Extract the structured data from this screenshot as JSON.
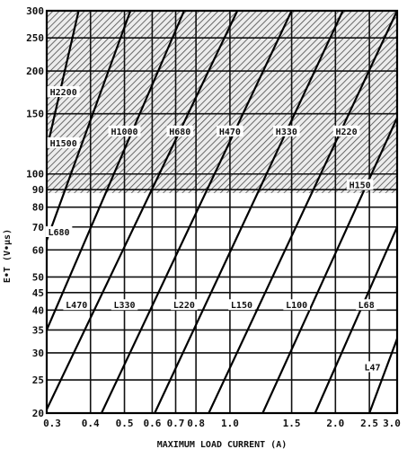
{
  "chart_data": {
    "type": "line",
    "title": "",
    "xlabel": "MAXIMUM LOAD CURRENT (A)",
    "ylabel": "E•T (V•μs)",
    "x_scale": "log",
    "y_scale": "log",
    "xlim": [
      0.3,
      3.0
    ],
    "ylim": [
      20,
      300
    ],
    "grid": true,
    "x_ticks": [
      0.3,
      0.4,
      0.5,
      0.6,
      0.7,
      0.8,
      1.0,
      1.5,
      2.0,
      2.5,
      3.0
    ],
    "x_tick_labels": [
      "0.3",
      "0.4",
      "0.5",
      "0.6",
      "0.7",
      "0.8",
      "1.0",
      "1.5",
      "2.0",
      "2.5",
      "3.0"
    ],
    "y_ticks": [
      20,
      25,
      30,
      35,
      40,
      45,
      50,
      60,
      70,
      80,
      90,
      100,
      150,
      200,
      250,
      300
    ],
    "y_tick_labels": [
      "20",
      "25",
      "30",
      "35",
      "40",
      "45",
      "50",
      "60",
      "70",
      "80",
      "90",
      "100",
      "150",
      "200",
      "250",
      "300"
    ],
    "shaded_region": {
      "description": "H-series inductor region",
      "y_from": 88,
      "y_to": 300
    },
    "boundaries": [
      {
        "name": "b1",
        "points": [
          [
            0.3,
            118
          ],
          [
            0.37,
            300
          ]
        ]
      },
      {
        "name": "b2",
        "points": [
          [
            0.3,
            64
          ],
          [
            0.52,
            300
          ]
        ]
      },
      {
        "name": "b3",
        "points": [
          [
            0.3,
            35
          ],
          [
            0.74,
            300
          ]
        ]
      },
      {
        "name": "b4",
        "points": [
          [
            0.3,
            20.5
          ],
          [
            1.05,
            300
          ]
        ]
      },
      {
        "name": "b5",
        "points": [
          [
            0.43,
            20
          ],
          [
            1.5,
            300
          ]
        ]
      },
      {
        "name": "b6",
        "points": [
          [
            0.61,
            20
          ],
          [
            2.1,
            300
          ]
        ]
      },
      {
        "name": "b7",
        "points": [
          [
            0.87,
            20
          ],
          [
            3.0,
            300
          ]
        ]
      },
      {
        "name": "b8",
        "points": [
          [
            1.24,
            20
          ],
          [
            3.0,
            146
          ]
        ]
      },
      {
        "name": "b9",
        "points": [
          [
            1.75,
            20
          ],
          [
            3.0,
            70
          ]
        ]
      },
      {
        "name": "b10",
        "points": [
          [
            2.5,
            20
          ],
          [
            3.0,
            33
          ]
        ]
      }
    ],
    "region_labels": [
      {
        "text": "H2200",
        "x": 0.335,
        "y": 172
      },
      {
        "text": "H1500",
        "x": 0.335,
        "y": 122
      },
      {
        "text": "H1000",
        "x": 0.5,
        "y": 132
      },
      {
        "text": "H680",
        "x": 0.72,
        "y": 132
      },
      {
        "text": "H470",
        "x": 1.0,
        "y": 132
      },
      {
        "text": "H330",
        "x": 1.45,
        "y": 132
      },
      {
        "text": "H220",
        "x": 2.15,
        "y": 132
      },
      {
        "text": "H150",
        "x": 2.35,
        "y": 92
      },
      {
        "text": "L680",
        "x": 0.325,
        "y": 67
      },
      {
        "text": "L470",
        "x": 0.365,
        "y": 41
      },
      {
        "text": "L330",
        "x": 0.5,
        "y": 41
      },
      {
        "text": "L220",
        "x": 0.74,
        "y": 41
      },
      {
        "text": "L150",
        "x": 1.08,
        "y": 41
      },
      {
        "text": "L100",
        "x": 1.55,
        "y": 41
      },
      {
        "text": "L68",
        "x": 2.45,
        "y": 41
      },
      {
        "text": "L47",
        "x": 2.55,
        "y": 27
      }
    ]
  }
}
